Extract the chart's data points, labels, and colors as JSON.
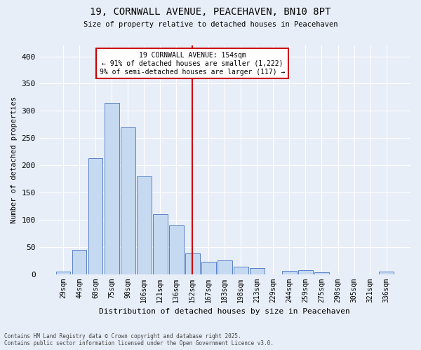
{
  "title_line1": "19, CORNWALL AVENUE, PEACEHAVEN, BN10 8PT",
  "title_line2": "Size of property relative to detached houses in Peacehaven",
  "xlabel": "Distribution of detached houses by size in Peacehaven",
  "ylabel": "Number of detached properties",
  "categories": [
    "29sqm",
    "44sqm",
    "60sqm",
    "75sqm",
    "90sqm",
    "106sqm",
    "121sqm",
    "136sqm",
    "152sqm",
    "167sqm",
    "183sqm",
    "198sqm",
    "213sqm",
    "229sqm",
    "244sqm",
    "259sqm",
    "275sqm",
    "290sqm",
    "305sqm",
    "321sqm",
    "336sqm"
  ],
  "values": [
    5,
    44,
    213,
    315,
    270,
    180,
    110,
    90,
    38,
    22,
    25,
    14,
    11,
    0,
    6,
    7,
    3,
    0,
    0,
    0,
    4
  ],
  "bar_color": "#c5d9f1",
  "bar_edge_color": "#4472c4",
  "redline_index": 8,
  "redline_label": "19 CORNWALL AVENUE: 154sqm",
  "annotation_line2": "← 91% of detached houses are smaller (1,222)",
  "annotation_line3": "9% of semi-detached houses are larger (117) →",
  "annotation_box_color": "#ffffff",
  "annotation_box_edge": "#cc0000",
  "redline_color": "#cc0000",
  "ylim": [
    0,
    420
  ],
  "yticks": [
    0,
    50,
    100,
    150,
    200,
    250,
    300,
    350,
    400
  ],
  "background_color": "#e8eef7",
  "footer_line1": "Contains HM Land Registry data © Crown copyright and database right 2025.",
  "footer_line2": "Contains public sector information licensed under the Open Government Licence v3.0."
}
